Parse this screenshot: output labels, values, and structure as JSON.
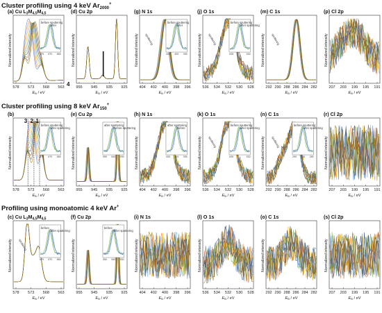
{
  "sections": [
    {
      "id": "s1",
      "label": "Cluster profiling using 4 keV Ar",
      "sub": "2000",
      "sup": "+"
    },
    {
      "id": "s2",
      "label": "Cluster profiling using 8 keV Ar",
      "sub": "150",
      "sup": "+"
    },
    {
      "id": "s3",
      "label": "Profiling using monoatomic 4 keV Ar",
      "sub": "",
      "sup": "+"
    }
  ],
  "ylabel": "Normalized intensity",
  "xlabel_prefix": "E",
  "xlabel_sub": "B",
  "xlabel_suffix": " / eV",
  "colors": [
    "#4472c4",
    "#ed7d31",
    "#a5a5a5",
    "#ffc000",
    "#5b9bd5",
    "#70ad47",
    "#264478",
    "#9e480e",
    "#636363",
    "#997300"
  ],
  "chart_data": [
    {
      "id": "a",
      "row": 0,
      "col": 0,
      "type": "line",
      "label": "(a)",
      "title": "Cu L",
      "title_parts": [
        {
          "t": "(a) Cu L"
        },
        {
          "t": "3",
          "s": "sub"
        },
        {
          "t": "M"
        },
        {
          "t": "4,5",
          "s": "sub"
        },
        {
          "t": "M"
        },
        {
          "t": "4,5",
          "s": "sub"
        }
      ],
      "xticks": [
        "578",
        "573",
        "568",
        "563"
      ],
      "xlim": [
        580,
        561
      ],
      "shape": "auger",
      "inset": {
        "labels": [
          "before sputtering",
          "after"
        ],
        "ticks": [
          "575",
          "570",
          "565"
        ]
      }
    },
    {
      "id": "d",
      "row": 0,
      "col": 1,
      "type": "line",
      "title_parts": [
        {
          "t": "(d) Cu 2p"
        }
      ],
      "xticks": [
        "955",
        "945",
        "935",
        "925"
      ],
      "xlim": [
        960,
        922
      ],
      "shape": "cu2p_sat",
      "marker": "4",
      "arrow": true
    },
    {
      "id": "g",
      "row": 0,
      "col": 2,
      "type": "line",
      "title_parts": [
        {
          "t": "(g) N 1s"
        }
      ],
      "xticks": [
        "404",
        "402",
        "400",
        "398",
        "396"
      ],
      "xlim": [
        405,
        395
      ],
      "shape": "single",
      "inset": {
        "labels": [
          "before sputtering",
          "after"
        ],
        "ticks": [
          "405",
          "400",
          "395"
        ]
      },
      "annotation": "sputtering"
    },
    {
      "id": "j",
      "row": 0,
      "col": 3,
      "type": "line",
      "title_parts": [
        {
          "t": "(j) O 1s"
        }
      ],
      "xticks": [
        "536",
        "534",
        "532",
        "530",
        "528"
      ],
      "xlim": [
        537,
        527
      ],
      "shape": "noisy_peak",
      "inset": {
        "labels": [
          "before sputtering",
          "after sputtering"
        ],
        "ticks": [
          "535",
          "530"
        ]
      },
      "annotation": "sputtering"
    },
    {
      "id": "m",
      "row": 0,
      "col": 4,
      "type": "line",
      "title_parts": [
        {
          "t": "(m) C 1s"
        }
      ],
      "xticks": [
        "292",
        "290",
        "288",
        "286",
        "284",
        "282"
      ],
      "xlim": [
        293,
        281
      ],
      "shape": "single_c",
      "annotation": "sputtering"
    },
    {
      "id": "p",
      "row": 0,
      "col": 5,
      "type": "line",
      "title_parts": [
        {
          "t": "(p) Cl 2p"
        }
      ],
      "xticks": [
        "207",
        "203",
        "199",
        "195",
        "191"
      ],
      "xlim": [
        208,
        190
      ],
      "shape": "noise_hump"
    },
    {
      "id": "b",
      "row": 1,
      "col": 0,
      "type": "line",
      "title_parts": [
        {
          "t": "(b)"
        }
      ],
      "xticks": [
        "578",
        "573",
        "568",
        "563"
      ],
      "xlim": [
        580,
        561
      ],
      "shape": "auger2",
      "markers": [
        "3",
        "2",
        "1"
      ],
      "inset": {
        "labels": [
          "before sputtering",
          "after sputtering"
        ],
        "ticks": [
          "575",
          "570",
          "565"
        ]
      }
    },
    {
      "id": "e",
      "row": 1,
      "col": 1,
      "type": "line",
      "title_parts": [
        {
          "t": "(e) Cu 2p"
        }
      ],
      "xticks": [
        "955",
        "945",
        "935",
        "925"
      ],
      "xlim": [
        960,
        922
      ],
      "shape": "cu2p",
      "inset": {
        "labels": [
          "after sputtering",
          "before sputtering"
        ],
        "ticks": [
          "950",
          "940",
          "930"
        ]
      }
    },
    {
      "id": "h",
      "row": 1,
      "col": 2,
      "type": "line",
      "title_parts": [
        {
          "t": "(h) N 1s"
        }
      ],
      "xticks": [
        "404",
        "402",
        "400",
        "398",
        "396"
      ],
      "xlim": [
        405,
        395
      ],
      "shape": "noisy_peak",
      "inset": {
        "labels": [
          "after sputtering",
          "before"
        ],
        "ticks": [
          "405",
          "400",
          "395"
        ]
      }
    },
    {
      "id": "k",
      "row": 1,
      "col": 3,
      "type": "line",
      "title_parts": [
        {
          "t": "(k) O 1s"
        }
      ],
      "xticks": [
        "536",
        "534",
        "532",
        "530",
        "528"
      ],
      "xlim": [
        537,
        527
      ],
      "shape": "noisy_peak",
      "inset": {
        "labels": [
          "before sputtering",
          "after sputtering"
        ],
        "ticks": [
          "535",
          "530"
        ]
      },
      "annotation": "sputtering"
    },
    {
      "id": "n",
      "row": 1,
      "col": 4,
      "type": "line",
      "title_parts": [
        {
          "t": "(n) C 1s"
        }
      ],
      "xticks": [
        "292",
        "290",
        "288",
        "286",
        "284",
        "282"
      ],
      "xlim": [
        293,
        281
      ],
      "shape": "noisy_c",
      "inset": {
        "labels": [
          "before sputtering",
          "after sputtering"
        ],
        "ticks": [
          "290",
          "285",
          "280"
        ]
      },
      "annotation": "sputtering"
    },
    {
      "id": "r",
      "row": 1,
      "col": 5,
      "type": "line",
      "title_parts": [
        {
          "t": "(r) Cl 2p"
        }
      ],
      "xticks": [
        "207",
        "203",
        "199",
        "195",
        "191"
      ],
      "xlim": [
        208,
        190
      ],
      "shape": "noise_dense"
    },
    {
      "id": "c",
      "row": 2,
      "col": 0,
      "type": "line",
      "title_parts": [
        {
          "t": "(c) Cu L"
        },
        {
          "t": "3",
          "s": "sub"
        },
        {
          "t": "M"
        },
        {
          "t": "4,5",
          "s": "sub"
        },
        {
          "t": "M"
        },
        {
          "t": "4,5",
          "s": "sub"
        }
      ],
      "xticks": [
        "578",
        "573",
        "568",
        "563"
      ],
      "xlim": [
        580,
        561
      ],
      "shape": "auger3",
      "inset": {
        "labels": [
          "before",
          "after sputtering"
        ],
        "ticks": [
          "575",
          "570",
          "565"
        ]
      },
      "annotation": "sputtering"
    },
    {
      "id": "f",
      "row": 2,
      "col": 1,
      "type": "line",
      "title_parts": [
        {
          "t": "(f) Cu 2p"
        }
      ],
      "xticks": [
        "955",
        "945",
        "935",
        "925"
      ],
      "xlim": [
        960,
        922
      ],
      "shape": "cu2p",
      "inset": {
        "labels": [
          "before",
          "after sputtering"
        ],
        "ticks": [
          "950",
          "940",
          "930"
        ]
      }
    },
    {
      "id": "i",
      "row": 2,
      "col": 2,
      "type": "line",
      "title_parts": [
        {
          "t": "(i) N 1s"
        }
      ],
      "xticks": [
        "404",
        "402",
        "400",
        "398",
        "396"
      ],
      "xlim": [
        405,
        395
      ],
      "shape": "noise_sparse"
    },
    {
      "id": "l",
      "row": 2,
      "col": 3,
      "type": "line",
      "title_parts": [
        {
          "t": "(l) O 1s"
        }
      ],
      "xticks": [
        "536",
        "534",
        "532",
        "530",
        "528"
      ],
      "xlim": [
        537,
        527
      ],
      "shape": "noise_sparse_peak"
    },
    {
      "id": "o",
      "row": 2,
      "col": 4,
      "type": "line",
      "title_parts": [
        {
          "t": "(o) C 1s"
        }
      ],
      "xticks": [
        "292",
        "290",
        "288",
        "286",
        "284",
        "282"
      ],
      "xlim": [
        293,
        281
      ],
      "shape": "noise_sparse_peak"
    },
    {
      "id": "s",
      "row": 2,
      "col": 5,
      "type": "line",
      "title_parts": [
        {
          "t": "(s) Cl 2p"
        }
      ],
      "xticks": [
        "207",
        "203",
        "199",
        "195",
        "191"
      ],
      "xlim": [
        208,
        190
      ],
      "shape": "noise_sparse"
    }
  ]
}
